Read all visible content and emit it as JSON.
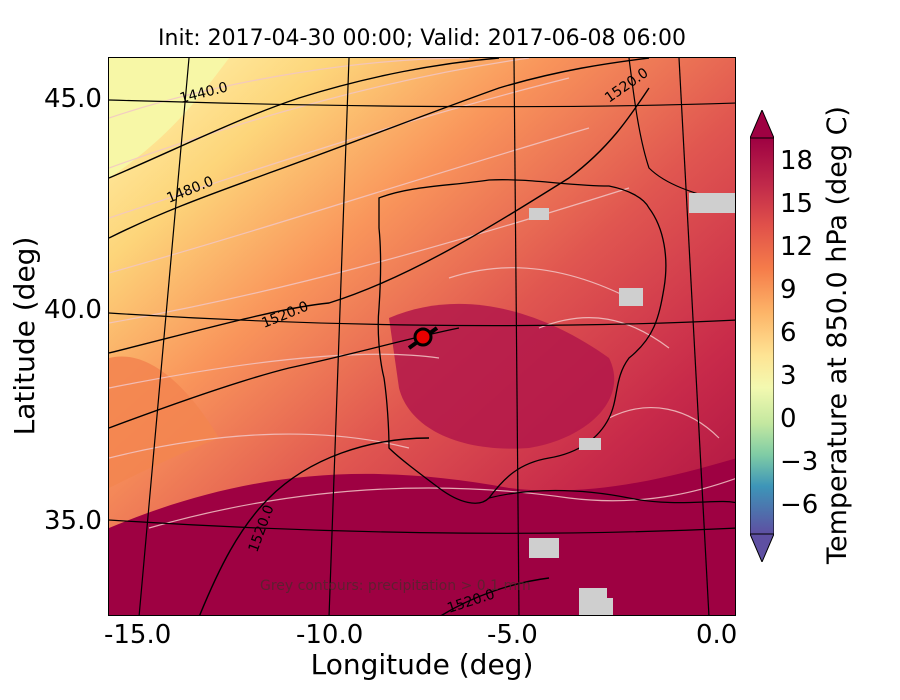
{
  "title": "Init: 2017-04-30 00:00; Valid: 2017-06-08 06:00",
  "xlabel": "Longitude (deg)",
  "ylabel": "Latitude (deg)",
  "x_ticks": [
    "-15.0",
    "-10.0",
    "-5.0",
    "0.0"
  ],
  "y_ticks": [
    "45.0",
    "40.0",
    "35.0"
  ],
  "colorbar": {
    "label": "Temperature at 850.0 hPa (deg C)",
    "ticks": [
      "18",
      "15",
      "12",
      "9",
      "6",
      "3",
      "0",
      "−3",
      "−6"
    ],
    "range": [
      -8,
      20
    ]
  },
  "contour_labels": [
    "1440.0",
    "1480.0",
    "1520.0",
    "1520.0",
    "1520.0",
    "1520.0"
  ],
  "note": "Grey contours: precipitation > 0.1 mm",
  "marker": {
    "lon": -7.6,
    "lat": 39.4
  },
  "colors": {
    "hot": "#9e0142",
    "warm": "#d53e4f",
    "orange": "#f46d43",
    "light": "#fdae61",
    "pale": "#fee08b",
    "yellowish": "#ffffbf"
  }
}
